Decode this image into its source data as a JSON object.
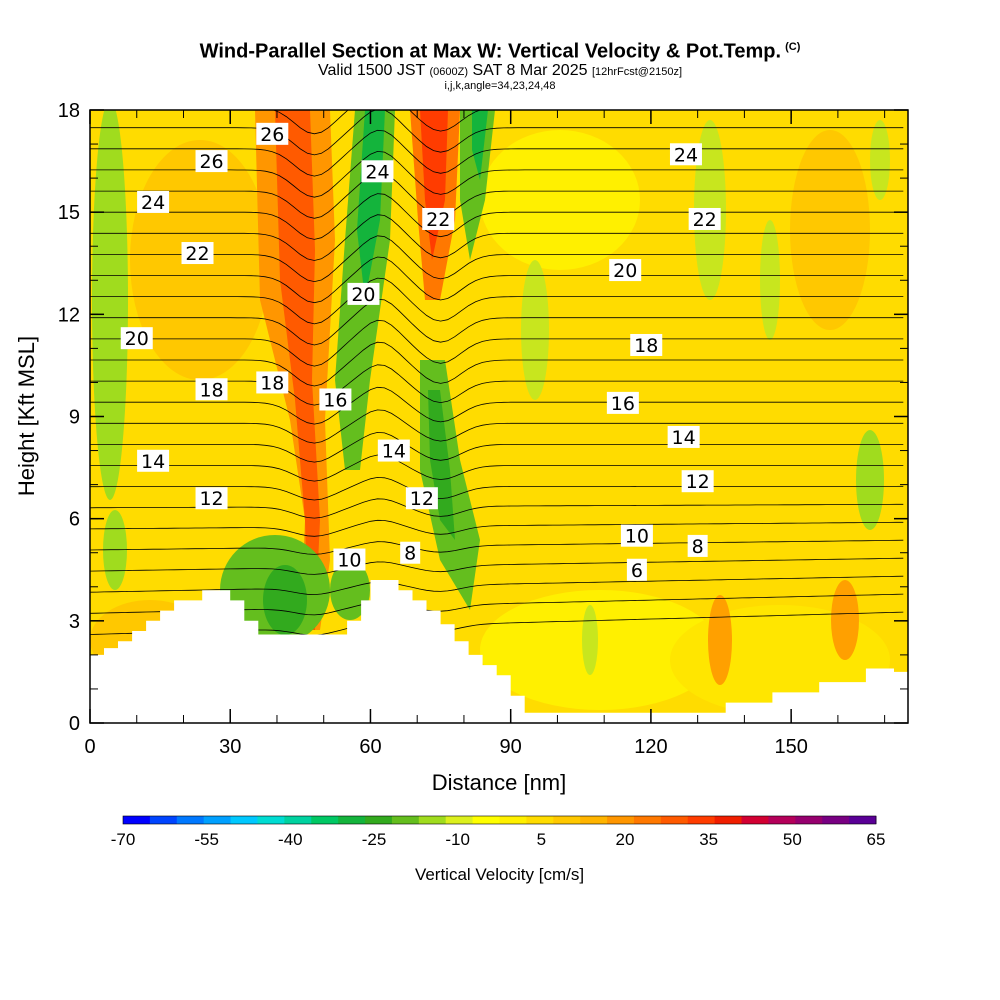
{
  "title": {
    "main": "Wind-Parallel Section at Max W: Vertical Velocity & Pot.Temp.",
    "copyright": "(C)",
    "valid_prefix": "Valid 1500 JST",
    "valid_utc": "(0600Z)",
    "valid_date": "SAT 8 Mar 2025",
    "forecast": "[12hrFcst@2150z]",
    "indices": "i,j,k,angle=34,23,24,48"
  },
  "chart_data": {
    "type": "heatmap",
    "xlabel": "Distance [nm]",
    "ylabel": "Height [Kft MSL]",
    "xlim": [
      0,
      175
    ],
    "ylim": [
      0,
      18
    ],
    "x_ticks": [
      0,
      30,
      60,
      90,
      120,
      150
    ],
    "y_ticks": [
      0,
      3,
      6,
      9,
      12,
      15,
      18
    ],
    "colorbar": {
      "title": "Vertical Velocity [cm/s]",
      "tick_labels": [
        "-70",
        "-55",
        "-40",
        "-25",
        "-10",
        "5",
        "20",
        "35",
        "50",
        "65"
      ],
      "colors": [
        "#0000ff",
        "#0044ff",
        "#0078ff",
        "#00a0ff",
        "#00c8ff",
        "#00dcd2",
        "#00d2a0",
        "#00c864",
        "#14b43c",
        "#32aa1e",
        "#64be1e",
        "#a0dc1e",
        "#dcf01e",
        "#ffff00",
        "#fff000",
        "#ffdc00",
        "#ffc800",
        "#ffb400",
        "#ff9600",
        "#ff7800",
        "#ff5a00",
        "#ff3c00",
        "#f01e00",
        "#d20032",
        "#b4005a",
        "#96006e",
        "#780082",
        "#5a0096"
      ]
    },
    "contour_variable": "Potential temperature",
    "contour_labels": [
      {
        "text": "26",
        "x": 26,
        "y": 16.5
      },
      {
        "text": "26",
        "x": 39,
        "y": 17.3
      },
      {
        "text": "24",
        "x": 13.5,
        "y": 15.3
      },
      {
        "text": "24",
        "x": 61.5,
        "y": 16.2
      },
      {
        "text": "24",
        "x": 127.5,
        "y": 16.7
      },
      {
        "text": "22",
        "x": 23,
        "y": 13.8
      },
      {
        "text": "22",
        "x": 74.5,
        "y": 14.8
      },
      {
        "text": "22",
        "x": 131.5,
        "y": 14.8
      },
      {
        "text": "20",
        "x": 10,
        "y": 11.3
      },
      {
        "text": "20",
        "x": 58.5,
        "y": 12.6
      },
      {
        "text": "20",
        "x": 114.5,
        "y": 13.3
      },
      {
        "text": "18",
        "x": 26,
        "y": 9.8
      },
      {
        "text": "18",
        "x": 39,
        "y": 10
      },
      {
        "text": "18",
        "x": 119,
        "y": 11.1
      },
      {
        "text": "16",
        "x": 52.5,
        "y": 9.5
      },
      {
        "text": "16",
        "x": 114,
        "y": 9.4
      },
      {
        "text": "14",
        "x": 13.5,
        "y": 7.7
      },
      {
        "text": "14",
        "x": 65,
        "y": 8
      },
      {
        "text": "14",
        "x": 127,
        "y": 8.4
      },
      {
        "text": "12",
        "x": 26,
        "y": 6.6
      },
      {
        "text": "12",
        "x": 71,
        "y": 6.6
      },
      {
        "text": "12",
        "x": 130,
        "y": 7.1
      },
      {
        "text": "10",
        "x": 55.5,
        "y": 4.8
      },
      {
        "text": "10",
        "x": 117,
        "y": 5.5
      },
      {
        "text": "8",
        "x": 68.5,
        "y": 5
      },
      {
        "text": "8",
        "x": 130,
        "y": 5.2
      },
      {
        "text": "6",
        "x": 117,
        "y": 4.5
      }
    ],
    "terrain_nm_kft": [
      [
        0,
        2
      ],
      [
        3,
        2.2
      ],
      [
        6,
        2.4
      ],
      [
        9,
        2.7
      ],
      [
        12,
        3
      ],
      [
        15,
        3.3
      ],
      [
        18,
        3.6
      ],
      [
        24,
        3.9
      ],
      [
        30,
        3.6
      ],
      [
        33,
        3
      ],
      [
        36,
        2.6
      ],
      [
        42,
        2.6
      ],
      [
        48,
        2.6
      ],
      [
        52,
        2.6
      ],
      [
        55,
        3
      ],
      [
        58,
        3.6
      ],
      [
        60,
        4.2
      ],
      [
        64,
        4.2
      ],
      [
        66,
        3.9
      ],
      [
        69,
        3.6
      ],
      [
        72,
        3.3
      ],
      [
        75,
        2.9
      ],
      [
        78,
        2.4
      ],
      [
        81,
        2
      ],
      [
        84,
        1.7
      ],
      [
        87,
        1.4
      ],
      [
        90,
        0.8
      ],
      [
        93,
        0.3
      ],
      [
        130,
        0.3
      ],
      [
        136,
        0.6
      ],
      [
        146,
        0.9
      ],
      [
        156,
        1.2
      ],
      [
        166,
        1.6
      ],
      [
        172,
        1.5
      ],
      [
        175,
        1.3
      ]
    ]
  }
}
